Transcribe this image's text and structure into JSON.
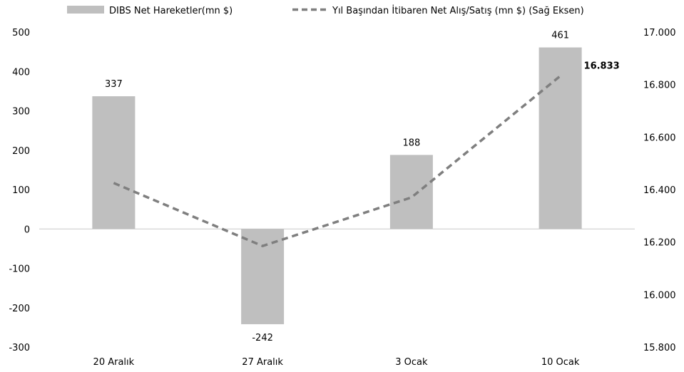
{
  "chart_data": {
    "type": "bar",
    "categories": [
      "20 Aralık",
      "27 Aralık",
      "3 Ocak",
      "10 Ocak"
    ],
    "bar_series": {
      "name": "DIBS Net Hareketler(mn $)",
      "values": [
        337,
        -242,
        188,
        461
      ],
      "labels": [
        "337",
        "-242",
        "188",
        "461"
      ],
      "color": "#bfbfbf"
    },
    "line_series": {
      "name": "Yıl Başından İtibaren Net Alış/Satış (mn $) (Sağ Eksen)",
      "values": [
        16425,
        16185,
        16370,
        16833
      ],
      "last_label": "16.833",
      "color": "#7f7f7f",
      "style": "dashed",
      "axis": "right"
    },
    "left_axis": {
      "ylim": [
        -300,
        500
      ],
      "ticks": [
        -300,
        -200,
        -100,
        0,
        100,
        200,
        300,
        400,
        500
      ],
      "tick_labels": [
        "-300",
        "-200",
        "-100",
        "0",
        "100",
        "200",
        "300",
        "400",
        "500"
      ]
    },
    "right_axis": {
      "ylim": [
        15800,
        17000
      ],
      "ticks": [
        15800,
        16000,
        16200,
        16400,
        16600,
        16800,
        17000
      ],
      "tick_labels": [
        "15.800",
        "16.000",
        "16.200",
        "16.400",
        "16.600",
        "16.800",
        "17.000"
      ]
    },
    "legend_position": "top",
    "grid": false
  }
}
